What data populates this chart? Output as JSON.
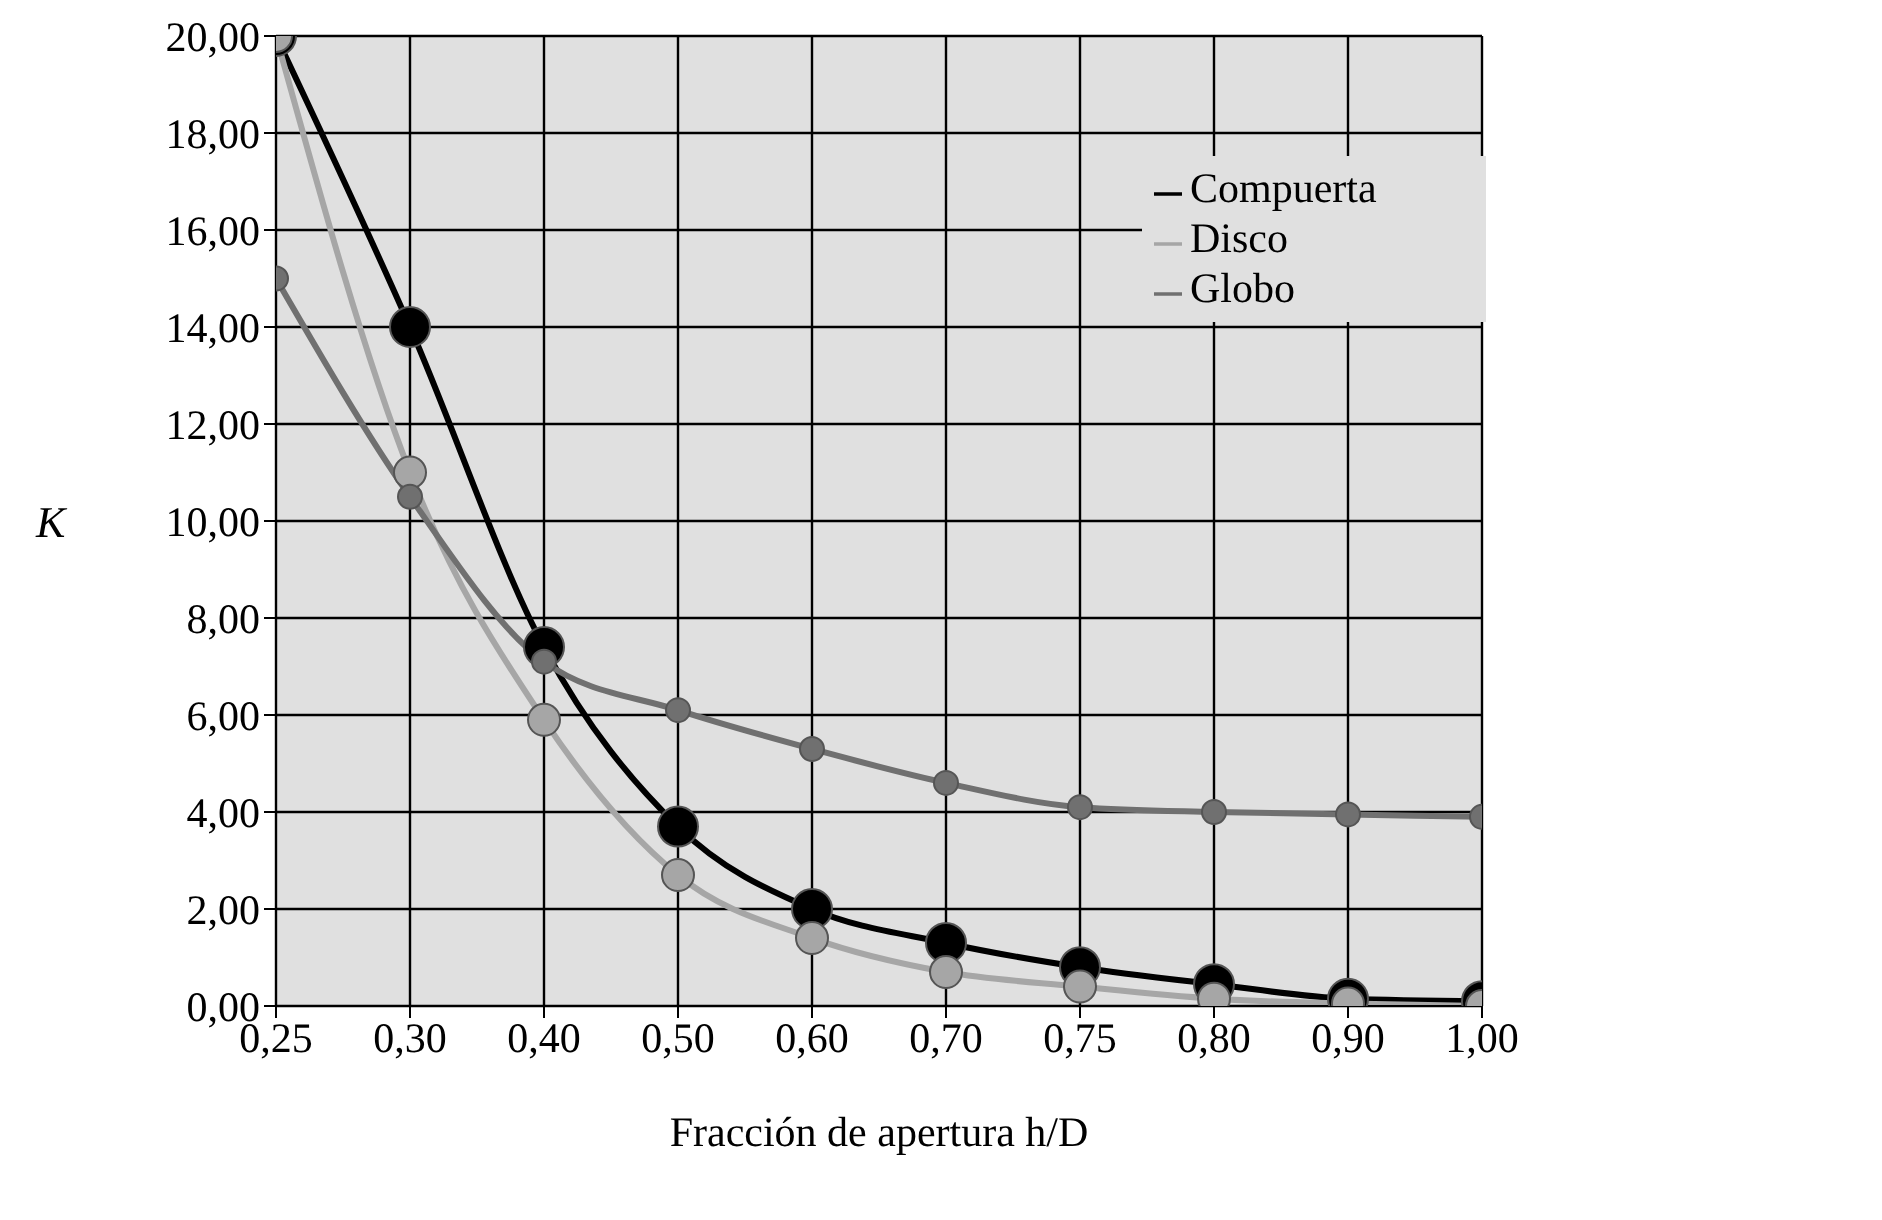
{
  "chart_data": {
    "type": "line",
    "xlabel": "Fracción de apertura h/D",
    "ylabel": "K",
    "categories": [
      "0,25",
      "0,30",
      "0,40",
      "0,50",
      "0,60",
      "0,70",
      "0,75",
      "0,80",
      "0,90",
      "1,00"
    ],
    "series": [
      {
        "name": "Compuerta",
        "color": "#000000",
        "values": [
          20,
          14,
          7.4,
          3.7,
          2.0,
          1.3,
          0.8,
          0.45,
          0.15,
          0.1
        ]
      },
      {
        "name": "Disco",
        "color": "#a6a6a6",
        "values": [
          20,
          11,
          5.9,
          2.7,
          1.4,
          0.7,
          0.4,
          0.15,
          0.05,
          0
        ]
      },
      {
        "name": "Globo",
        "color": "#707070",
        "values": [
          15,
          10.5,
          7.1,
          6.1,
          5.3,
          4.6,
          4.1,
          4.0,
          3.95,
          3.9
        ]
      }
    ],
    "ylim": [
      0,
      20
    ],
    "yticks": [
      {
        "value": 0,
        "label": "0,00"
      },
      {
        "value": 2,
        "label": "2,00"
      },
      {
        "value": 4,
        "label": "4,00"
      },
      {
        "value": 6,
        "label": "6,00"
      },
      {
        "value": 8,
        "label": "8,00"
      },
      {
        "value": 10,
        "label": "10,00"
      },
      {
        "value": 12,
        "label": "12,00"
      },
      {
        "value": 14,
        "label": "14,00"
      },
      {
        "value": 16,
        "label": "16,00"
      },
      {
        "value": 18,
        "label": "18,00"
      },
      {
        "value": 20,
        "label": "20,00"
      }
    ],
    "grid": true,
    "legend": "top right",
    "marker": "circle",
    "line_style": "solid"
  }
}
